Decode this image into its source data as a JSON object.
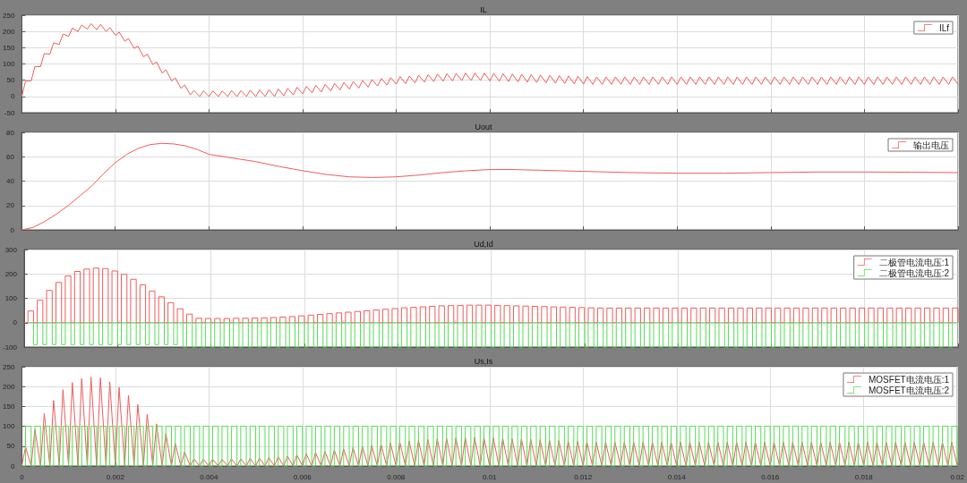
{
  "chart_data": [
    {
      "type": "line",
      "title": "IL",
      "xlim": [
        0,
        0.02
      ],
      "xticks": [
        0,
        0.002,
        0.004,
        0.006,
        0.008,
        0.01,
        0.012,
        0.014,
        0.016,
        0.018,
        0.02
      ],
      "ylim": [
        -50,
        250
      ],
      "yticks": [
        -50,
        0,
        50,
        100,
        150,
        200,
        250
      ],
      "grid": true,
      "legend": "top right",
      "tick_labels": "y",
      "x": [
        0,
        8e-05,
        0.0002,
        0.00028,
        0.0004,
        0.00048,
        0.0006,
        0.00068,
        0.0008,
        0.00088,
        0.001,
        0.00108,
        0.0012,
        0.00128,
        0.0014,
        0.00148,
        0.0016,
        0.00168,
        0.0018,
        0.00188,
        0.002,
        0.00208,
        0.0022,
        0.00228,
        0.0024,
        0.00248,
        0.0026,
        0.00268,
        0.0028,
        0.00288,
        0.003,
        0.00308,
        0.0032,
        0.00328,
        0.0034,
        0.00348,
        0.0036,
        0.00368,
        0.0038,
        0.00388,
        0.004,
        0.00408,
        0.0042,
        0.00428,
        0.0044,
        0.00448,
        0.0046,
        0.00468,
        0.0048,
        0.00488,
        0.005,
        0.00508,
        0.0052,
        0.00528,
        0.0054,
        0.00548,
        0.0056,
        0.00568,
        0.0058,
        0.00588,
        0.006,
        0.00608,
        0.0062,
        0.00628,
        0.0064,
        0.00648,
        0.0066,
        0.00668,
        0.0068,
        0.00688,
        0.007,
        0.00708,
        0.0072,
        0.00728,
        0.0074,
        0.00748,
        0.0076,
        0.00768,
        0.0078,
        0.00788,
        0.008,
        0.00808,
        0.0082,
        0.00828,
        0.0084,
        0.00848,
        0.0086,
        0.00868,
        0.0088,
        0.00888,
        0.009,
        0.00908,
        0.0092,
        0.00928,
        0.0094,
        0.00948,
        0.0096,
        0.00968,
        0.0098,
        0.00988,
        0.01,
        0.01008,
        0.0102,
        0.01028,
        0.0104,
        0.01048,
        0.0106,
        0.01068,
        0.0108,
        0.01088,
        0.011,
        0.01108,
        0.0112,
        0.01128,
        0.0114,
        0.01148,
        0.0116,
        0.01168,
        0.0118,
        0.01188,
        0.012,
        0.01208,
        0.0122,
        0.01228,
        0.0124,
        0.01248,
        0.0126,
        0.01268,
        0.0128,
        0.01288,
        0.013,
        0.01308,
        0.0132,
        0.01328,
        0.0134,
        0.01348,
        0.0136,
        0.01368,
        0.0138,
        0.01388,
        0.014,
        0.01408,
        0.0142,
        0.01428,
        0.0144,
        0.01448,
        0.0146,
        0.01468,
        0.0148,
        0.01488,
        0.015,
        0.01508,
        0.0152,
        0.01528,
        0.0154,
        0.01548,
        0.0156,
        0.01568,
        0.0158,
        0.01588,
        0.016,
        0.01608,
        0.0162,
        0.01628,
        0.0164,
        0.01648,
        0.0166,
        0.01668,
        0.0168,
        0.01688,
        0.017,
        0.01708,
        0.0172,
        0.01728,
        0.0174,
        0.01748,
        0.0176,
        0.01768,
        0.0178,
        0.01788,
        0.018,
        0.01808,
        0.0182,
        0.01828,
        0.0184,
        0.01848,
        0.0186,
        0.01868,
        0.0188,
        0.01888,
        0.019,
        0.01908,
        0.0192,
        0.01928,
        0.0194,
        0.01948,
        0.0196,
        0.01968,
        0.0198,
        0.01988,
        0.02
      ],
      "series": [
        {
          "name": "ILf",
          "color": "#ee5c5c",
          "values": [
            0,
            48,
            48,
            92,
            92,
            132,
            130,
            165,
            160,
            192,
            185,
            210,
            200,
            220,
            207,
            224,
            205,
            222,
            200,
            212,
            188,
            198,
            170,
            178,
            148,
            155,
            122,
            130,
            98,
            106,
            72,
            82,
            48,
            57,
            25,
            35,
            5,
            18,
            0,
            17,
            0,
            17,
            0,
            17,
            0,
            18,
            0,
            18,
            0,
            19,
            0,
            20,
            0,
            21,
            0,
            23,
            2,
            25,
            5,
            28,
            8,
            31,
            11,
            34,
            14,
            37,
            17,
            40,
            20,
            43,
            23,
            46,
            26,
            49,
            29,
            52,
            32,
            55,
            35,
            58,
            38,
            61,
            40,
            63,
            42,
            65,
            44,
            67,
            46,
            69,
            47,
            70,
            48,
            71,
            49,
            72,
            49,
            72,
            49,
            72,
            48,
            71,
            47,
            70,
            46,
            69,
            45,
            68,
            44,
            67,
            43,
            66,
            42,
            65,
            41,
            64,
            40,
            63,
            39,
            62,
            38,
            61,
            37,
            60,
            37,
            60,
            37,
            60,
            37,
            60,
            37,
            60,
            37,
            60,
            37,
            60,
            37,
            60,
            37,
            60,
            37,
            60,
            37,
            60,
            37,
            60,
            37,
            60,
            37,
            60,
            37,
            60,
            37,
            60,
            37,
            60,
            37,
            60,
            37,
            60,
            37,
            60,
            37,
            60,
            37,
            60,
            37,
            60,
            37,
            60,
            37,
            60,
            37,
            60,
            37,
            60,
            37,
            60,
            37,
            60,
            37,
            60,
            37,
            60,
            37,
            60,
            37,
            60,
            37,
            60,
            37,
            60,
            37,
            60,
            37,
            60,
            37,
            60,
            37,
            60,
            37
          ]
        }
      ]
    },
    {
      "type": "line",
      "title": "Uout",
      "xlim": [
        0,
        0.02
      ],
      "xticks": [
        0,
        0.002,
        0.004,
        0.006,
        0.008,
        0.01,
        0.012,
        0.014,
        0.016,
        0.018,
        0.02
      ],
      "ylim": [
        0,
        80
      ],
      "yticks": [
        0,
        20,
        40,
        60,
        80
      ],
      "grid": true,
      "legend": "top right",
      "tick_labels": "y",
      "x": [
        0,
        0.00025,
        0.0005,
        0.00075,
        0.001,
        0.00125,
        0.0015,
        0.00175,
        0.002,
        0.00225,
        0.0025,
        0.00275,
        0.003,
        0.00325,
        0.0035,
        0.00375,
        0.004,
        0.0045,
        0.005,
        0.0055,
        0.006,
        0.0065,
        0.007,
        0.0075,
        0.008,
        0.0085,
        0.009,
        0.0095,
        0.01,
        0.0105,
        0.011,
        0.0115,
        0.012,
        0.013,
        0.014,
        0.015,
        0.016,
        0.017,
        0.018,
        0.019,
        0.02
      ],
      "series": [
        {
          "name": "输出电压",
          "color": "#ee5c5c",
          "values": [
            0,
            2,
            7,
            13,
            20,
            28,
            36,
            46,
            55,
            62,
            67,
            70,
            71,
            70.5,
            69,
            66,
            62,
            59,
            56,
            52,
            48.6,
            45.5,
            43.5,
            43,
            43.5,
            45,
            47,
            48.5,
            49.5,
            49.5,
            49,
            48.5,
            48,
            47,
            46.5,
            46.5,
            47,
            47.5,
            47.5,
            47.3,
            47
          ]
        }
      ]
    },
    {
      "type": "step",
      "title": "Ud,Id",
      "xlim": [
        0,
        0.02
      ],
      "xticks": [
        0,
        0.002,
        0.004,
        0.006,
        0.008,
        0.01,
        0.012,
        0.014,
        0.016,
        0.018,
        0.02
      ],
      "ylim": [
        -100,
        300
      ],
      "yticks": [
        -100,
        0,
        100,
        200,
        300
      ],
      "grid": true,
      "legend": "top right",
      "tick_labels": "y",
      "x": [
        0,
        8e-05,
        0.0002,
        0.00028,
        0.0004,
        0.00048,
        0.0006,
        0.00068,
        0.0008,
        0.00088,
        0.001,
        0.00108,
        0.0012,
        0.00128,
        0.0014,
        0.00148,
        0.0016,
        0.00168,
        0.0018,
        0.00188,
        0.002,
        0.00208,
        0.0022,
        0.00228,
        0.0024,
        0.00248,
        0.0026,
        0.00268,
        0.0028,
        0.00288,
        0.003,
        0.00308,
        0.0032,
        0.00328,
        0.0034,
        0.00348,
        0.0036,
        0.00368,
        0.0038,
        0.00388,
        0.004,
        0.00408,
        0.0042,
        0.00428,
        0.0044,
        0.00448,
        0.0046,
        0.00468,
        0.0048,
        0.00488,
        0.005,
        0.00508,
        0.0052,
        0.00528,
        0.0054,
        0.00548,
        0.0056,
        0.00568,
        0.0058,
        0.00588,
        0.006,
        0.00608,
        0.0062,
        0.00628,
        0.0064,
        0.00648,
        0.0066,
        0.00668,
        0.0068,
        0.00688,
        0.007,
        0.00708,
        0.0072,
        0.00728,
        0.0074,
        0.00748,
        0.0076,
        0.00768,
        0.0078,
        0.00788,
        0.008,
        0.00808,
        0.0082,
        0.00828,
        0.0084,
        0.00848,
        0.0086,
        0.00868,
        0.0088,
        0.00888,
        0.009,
        0.00908,
        0.0092,
        0.00928,
        0.0094,
        0.00948,
        0.0096,
        0.00968,
        0.0098,
        0.00988,
        0.01,
        0.01008,
        0.0102,
        0.01028,
        0.0104,
        0.01048,
        0.0106,
        0.01068,
        0.0108,
        0.01088,
        0.011,
        0.01108,
        0.0112,
        0.01128,
        0.0114,
        0.01148,
        0.0116,
        0.01168,
        0.0118,
        0.01188,
        0.012,
        0.01208,
        0.0122,
        0.01228,
        0.0124,
        0.01248,
        0.0126,
        0.01268,
        0.0128,
        0.01288,
        0.013,
        0.01308,
        0.0132,
        0.01328,
        0.0134,
        0.01348,
        0.0136,
        0.01368,
        0.0138,
        0.01388,
        0.014,
        0.01408,
        0.0142,
        0.01428,
        0.0144,
        0.01448,
        0.0146,
        0.01468,
        0.0148,
        0.01488,
        0.015,
        0.01508,
        0.0152,
        0.01528,
        0.0154,
        0.01548,
        0.0156,
        0.01568,
        0.0158,
        0.01588,
        0.016,
        0.01608,
        0.0162,
        0.01628,
        0.0164,
        0.01648,
        0.0166,
        0.01668,
        0.0168,
        0.01688,
        0.017,
        0.01708,
        0.0172,
        0.01728,
        0.0174,
        0.01748,
        0.0176,
        0.01768,
        0.0178,
        0.01788,
        0.018,
        0.01808,
        0.0182,
        0.01828,
        0.0184,
        0.01848,
        0.0186,
        0.01868,
        0.0188,
        0.01888,
        0.019,
        0.01908,
        0.0192,
        0.01928,
        0.0194,
        0.01948,
        0.0196,
        0.01968,
        0.0198,
        0.01988,
        0.02
      ],
      "series": [
        {
          "name": "二极管电流电压:1",
          "color": "#ee5c5c",
          "values": [
            0,
            48,
            0,
            92,
            0,
            132,
            0,
            165,
            0,
            192,
            0,
            210,
            0,
            220,
            0,
            224,
            0,
            222,
            0,
            212,
            0,
            198,
            0,
            178,
            0,
            155,
            0,
            130,
            0,
            106,
            0,
            82,
            0,
            57,
            0,
            35,
            0,
            18,
            0,
            17,
            0,
            17,
            0,
            17,
            0,
            18,
            0,
            18,
            0,
            19,
            0,
            20,
            0,
            21,
            0,
            23,
            0,
            25,
            0,
            28,
            0,
            31,
            0,
            34,
            0,
            37,
            0,
            40,
            0,
            43,
            0,
            46,
            0,
            49,
            0,
            52,
            0,
            55,
            0,
            58,
            0,
            61,
            0,
            63,
            0,
            65,
            0,
            67,
            0,
            69,
            0,
            70,
            0,
            71,
            0,
            72,
            0,
            72,
            0,
            72,
            0,
            71,
            0,
            70,
            0,
            69,
            0,
            68,
            0,
            67,
            0,
            66,
            0,
            65,
            0,
            64,
            0,
            63,
            0,
            62,
            0,
            61,
            0,
            60,
            0,
            60,
            0,
            60,
            0,
            60,
            0,
            60,
            0,
            60,
            0,
            60,
            0,
            60,
            0,
            60,
            0,
            60,
            0,
            60,
            0,
            60,
            0,
            60,
            0,
            60,
            0,
            60,
            0,
            60,
            0,
            60,
            0,
            60,
            0,
            60,
            0,
            60,
            0,
            60,
            0,
            60,
            0,
            60,
            0,
            60,
            0,
            60,
            0,
            60,
            0,
            60,
            0,
            60,
            0,
            60,
            0,
            60,
            0,
            60,
            0,
            60,
            0,
            60,
            0,
            60,
            0,
            60,
            0,
            60,
            0,
            60,
            0,
            60,
            0,
            60,
            0
          ]
        },
        {
          "name": "二极管电流电压:2",
          "color": "#55dd55",
          "values": [
            null,
            0,
            -90,
            0,
            -90,
            0,
            -90,
            0,
            -90,
            0,
            -90,
            0,
            -90,
            0,
            -90,
            0,
            -90,
            0,
            -90,
            0,
            -90,
            0,
            -90,
            0,
            -90,
            0,
            -90,
            0,
            -90,
            0,
            -90,
            0,
            -90,
            0,
            -100,
            0,
            -100,
            0,
            -100,
            0,
            -100,
            0,
            -100,
            0,
            -100,
            0,
            -100,
            0,
            -100,
            0,
            -100,
            0,
            -100,
            0,
            -100,
            0,
            -100,
            0,
            -100,
            0,
            -100,
            0,
            -100,
            0,
            -100,
            0,
            -100,
            0,
            -100,
            0,
            -100,
            0,
            -100,
            0,
            -100,
            0,
            -100,
            0,
            -100,
            0,
            -100,
            0,
            -100,
            0,
            -100,
            0,
            -100,
            0,
            -100,
            0,
            -100,
            0,
            -100,
            0,
            -100,
            0,
            -100,
            0,
            -100,
            0,
            -100,
            0,
            -100,
            0,
            -100,
            0,
            -100,
            0,
            -100,
            0,
            -100,
            0,
            -100,
            0,
            -100,
            0,
            -100,
            0,
            -100,
            0,
            -100,
            0,
            -100,
            0,
            -100,
            0,
            -100,
            0,
            -100,
            0,
            -100,
            0,
            -100,
            0,
            -100,
            0,
            -100,
            0,
            -100,
            0,
            -100,
            0,
            -100,
            0,
            -100,
            0,
            -100,
            0,
            -100,
            0,
            -100,
            0,
            -100,
            0,
            -100,
            0,
            -100,
            0,
            -100,
            0,
            -100,
            0,
            -100,
            0,
            -100,
            0,
            -100,
            0,
            -100,
            0,
            -100,
            0,
            -100,
            0,
            -100,
            0,
            -100,
            0,
            -100,
            0,
            -100,
            0,
            -100,
            0,
            -100,
            0,
            -100,
            0,
            -100,
            0,
            -100,
            0,
            -100,
            0,
            -100,
            0,
            -100,
            0,
            -100,
            0,
            0
          ]
        }
      ]
    },
    {
      "type": "step",
      "title": "Us,Is",
      "xlim": [
        0,
        0.02
      ],
      "xticks": [
        0,
        0.002,
        0.004,
        0.006,
        0.008,
        0.01,
        0.012,
        0.014,
        0.016,
        0.018,
        0.02
      ],
      "ylim": [
        0,
        250
      ],
      "yticks": [
        0,
        50,
        100,
        150,
        200,
        250
      ],
      "grid": true,
      "legend": "top right",
      "x": [
        0,
        8e-05,
        0.0002,
        0.00028,
        0.0004,
        0.00048,
        0.0006,
        0.00068,
        0.0008,
        0.00088,
        0.001,
        0.00108,
        0.0012,
        0.00128,
        0.0014,
        0.00148,
        0.0016,
        0.00168,
        0.0018,
        0.00188,
        0.002,
        0.00208,
        0.0022,
        0.00228,
        0.0024,
        0.00248,
        0.0026,
        0.00268,
        0.0028,
        0.00288,
        0.003,
        0.00308,
        0.0032,
        0.00328,
        0.0034,
        0.00348,
        0.0036,
        0.00368,
        0.0038,
        0.00388,
        0.004,
        0.00408,
        0.0042,
        0.00428,
        0.0044,
        0.00448,
        0.0046,
        0.00468,
        0.0048,
        0.00488,
        0.005,
        0.00508,
        0.0052,
        0.00528,
        0.0054,
        0.00548,
        0.0056,
        0.00568,
        0.0058,
        0.00588,
        0.006,
        0.00608,
        0.0062,
        0.00628,
        0.0064,
        0.00648,
        0.0066,
        0.00668,
        0.0068,
        0.00688,
        0.007,
        0.00708,
        0.0072,
        0.00728,
        0.0074,
        0.00748,
        0.0076,
        0.00768,
        0.0078,
        0.00788,
        0.008,
        0.00808,
        0.0082,
        0.00828,
        0.0084,
        0.00848,
        0.0086,
        0.00868,
        0.0088,
        0.00888,
        0.009,
        0.00908,
        0.0092,
        0.00928,
        0.0094,
        0.00948,
        0.0096,
        0.00968,
        0.0098,
        0.00988,
        0.01,
        0.01008,
        0.0102,
        0.01028,
        0.0104,
        0.01048,
        0.0106,
        0.01068,
        0.0108,
        0.01088,
        0.011,
        0.01108,
        0.0112,
        0.01128,
        0.0114,
        0.01148,
        0.0116,
        0.01168,
        0.0118,
        0.01188,
        0.012,
        0.01208,
        0.0122,
        0.01228,
        0.0124,
        0.01248,
        0.0126,
        0.01268,
        0.0128,
        0.01288,
        0.013,
        0.01308,
        0.0132,
        0.01328,
        0.0134,
        0.01348,
        0.0136,
        0.01368,
        0.0138,
        0.01388,
        0.014,
        0.01408,
        0.0142,
        0.01428,
        0.0144,
        0.01448,
        0.0146,
        0.01468,
        0.0148,
        0.01488,
        0.015,
        0.01508,
        0.0152,
        0.01528,
        0.0154,
        0.01548,
        0.0156,
        0.01568,
        0.0158,
        0.01588,
        0.016,
        0.01608,
        0.0162,
        0.01628,
        0.0164,
        0.01648,
        0.0166,
        0.01668,
        0.0168,
        0.01688,
        0.017,
        0.01708,
        0.0172,
        0.01728,
        0.0174,
        0.01748,
        0.0176,
        0.01768,
        0.0178,
        0.01788,
        0.018,
        0.01808,
        0.0182,
        0.01828,
        0.0184,
        0.01848,
        0.0186,
        0.01868,
        0.0188,
        0.01888,
        0.019,
        0.01908,
        0.0192,
        0.01928,
        0.0194,
        0.01948,
        0.0196,
        0.01968,
        0.0198,
        0.01988,
        0.02
      ],
      "series": [
        {
          "name": "MOSFET电流电压:1",
          "type": "line",
          "color": "#ee5c5c",
          "values": [
            0,
            48,
            0,
            92,
            0,
            132,
            0,
            165,
            0,
            192,
            0,
            210,
            0,
            220,
            0,
            224,
            0,
            222,
            0,
            212,
            0,
            198,
            0,
            178,
            0,
            155,
            0,
            130,
            0,
            106,
            0,
            82,
            0,
            57,
            0,
            35,
            0,
            18,
            0,
            17,
            0,
            17,
            0,
            17,
            0,
            18,
            0,
            18,
            0,
            19,
            0,
            20,
            0,
            21,
            0,
            23,
            0,
            25,
            0,
            28,
            0,
            31,
            0,
            34,
            0,
            37,
            0,
            40,
            0,
            43,
            0,
            46,
            0,
            49,
            0,
            52,
            0,
            55,
            0,
            58,
            0,
            61,
            0,
            63,
            0,
            65,
            0,
            67,
            0,
            69,
            0,
            70,
            0,
            71,
            0,
            72,
            0,
            72,
            0,
            72,
            0,
            71,
            0,
            70,
            0,
            69,
            0,
            68,
            0,
            67,
            0,
            66,
            0,
            65,
            0,
            64,
            0,
            63,
            0,
            62,
            0,
            61,
            0,
            60,
            0,
            60,
            0,
            60,
            0,
            60,
            0,
            60,
            0,
            60,
            0,
            60,
            0,
            60,
            0,
            60,
            0,
            60,
            0,
            60,
            0,
            60,
            0,
            60,
            0,
            60,
            0,
            60,
            0,
            60,
            0,
            60,
            0,
            60,
            0,
            60,
            0,
            60,
            0,
            60,
            0,
            60,
            0,
            60,
            0,
            60,
            0,
            60,
            0,
            60,
            0,
            60,
            0,
            60,
            0,
            60,
            0,
            60,
            0,
            60,
            0,
            60,
            0,
            60,
            0,
            60,
            0,
            60,
            0,
            60,
            0,
            60,
            0,
            60,
            0,
            60,
            0
          ]
        },
        {
          "name": "MOSFET电流电压:2",
          "color": "#55dd55",
          "values": [
            0,
            100,
            0,
            100,
            0,
            100,
            0,
            100,
            0,
            100,
            0,
            100,
            0,
            100,
            0,
            100,
            0,
            100,
            0,
            100,
            0,
            100,
            0,
            100,
            0,
            100,
            0,
            100,
            0,
            100,
            0,
            100,
            0,
            100,
            0,
            100,
            0,
            100,
            0,
            100,
            0,
            100,
            0,
            100,
            0,
            100,
            0,
            100,
            0,
            100,
            0,
            100,
            0,
            100,
            0,
            100,
            0,
            100,
            0,
            100,
            0,
            100,
            0,
            100,
            0,
            100,
            0,
            100,
            0,
            100,
            0,
            100,
            0,
            100,
            0,
            100,
            0,
            100,
            0,
            100,
            0,
            100,
            0,
            100,
            0,
            100,
            0,
            100,
            0,
            100,
            0,
            100,
            0,
            100,
            0,
            100,
            0,
            100,
            0,
            100,
            0,
            100,
            0,
            100,
            0,
            100,
            0,
            100,
            0,
            100,
            0,
            100,
            0,
            100,
            0,
            100,
            0,
            100,
            0,
            100,
            0,
            100,
            0,
            100,
            0,
            100,
            0,
            100,
            0,
            100,
            0,
            100,
            0,
            100,
            0,
            100,
            0,
            100,
            0,
            100,
            0,
            100,
            0,
            100,
            0,
            100,
            0,
            100,
            0,
            100,
            0,
            100,
            0,
            100,
            0,
            100,
            0,
            100,
            0,
            100,
            0,
            100,
            0,
            100,
            0,
            100,
            0,
            100,
            0,
            100,
            0,
            100,
            0,
            100,
            0,
            100,
            0,
            100,
            0,
            100,
            0,
            100,
            0,
            100,
            0,
            100,
            0,
            100,
            0,
            100,
            0,
            100,
            0,
            100,
            0,
            100,
            0,
            100,
            0,
            100,
            0
          ]
        }
      ]
    }
  ]
}
